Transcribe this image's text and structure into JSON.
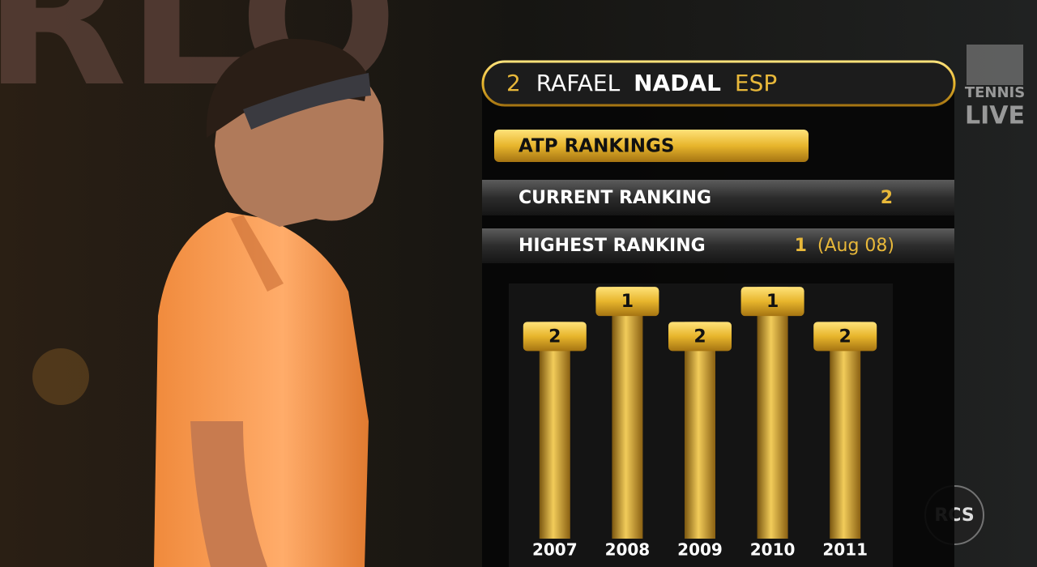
{
  "background_sign": "RLO",
  "logo": {
    "channel": "TENNIS",
    "sub": "LIVE"
  },
  "broadcaster": "RCS",
  "player": {
    "seed": 2,
    "first_name": "RAFAEL",
    "last_name": "NADAL",
    "country": "ESP"
  },
  "section_title": "ATP RANKINGS",
  "current_ranking": {
    "label": "CURRENT RANKING",
    "value": 2
  },
  "highest_ranking": {
    "label": "HIGHEST RANKING",
    "value": 1,
    "date": "(Aug 08)"
  },
  "chart_data": {
    "type": "bar",
    "categories": [
      "2007",
      "2008",
      "2009",
      "2010",
      "2011"
    ],
    "values": [
      2,
      1,
      2,
      1,
      2
    ],
    "ylim": [
      8.2,
      0
    ],
    "color": "#c99a1e"
  }
}
